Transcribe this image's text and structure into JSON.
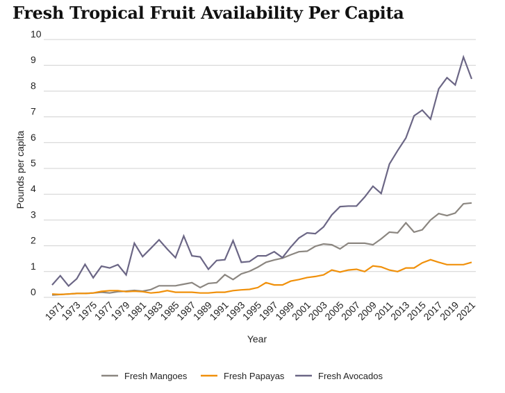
{
  "chart_data": {
    "type": "line",
    "title": "Fresh Tropical Fruit Availability Per Capita",
    "xlabel": "Year",
    "ylabel": "Pounds per capita",
    "ylim": [
      0,
      10
    ],
    "yticks": [
      0,
      1,
      2,
      3,
      4,
      5,
      6,
      7,
      8,
      9,
      10
    ],
    "x_start": 1970,
    "x_end": 2021,
    "xtick_labels": [
      "1971",
      "1973",
      "1975",
      "1977",
      "1979",
      "1981",
      "1983",
      "1985",
      "1987",
      "1989",
      "1991",
      "1993",
      "1995",
      "1997",
      "1999",
      "2001",
      "2003",
      "2005",
      "2007",
      "2009",
      "2011",
      "2013",
      "2015",
      "2017",
      "2019",
      "2021"
    ],
    "grid": true,
    "legend_position": "bottom",
    "series": [
      {
        "name": "Fresh Mangoes",
        "color": "#8b8680",
        "values": [
          0.09,
          0.11,
          0.13,
          0.15,
          0.15,
          0.17,
          0.2,
          0.17,
          0.22,
          0.24,
          0.27,
          0.24,
          0.3,
          0.45,
          0.45,
          0.45,
          0.51,
          0.57,
          0.38,
          0.54,
          0.57,
          0.88,
          0.69,
          0.91,
          1.01,
          1.17,
          1.36,
          1.45,
          1.52,
          1.65,
          1.77,
          1.79,
          1.98,
          2.07,
          2.04,
          1.88,
          2.1,
          2.1,
          2.1,
          2.04,
          2.27,
          2.53,
          2.5,
          2.89,
          2.53,
          2.62,
          3.0,
          3.25,
          3.17,
          3.27,
          3.63,
          3.66
        ]
      },
      {
        "name": "Fresh Papayas",
        "color": "#f0900a",
        "values": [
          0.13,
          0.11,
          0.13,
          0.15,
          0.15,
          0.17,
          0.23,
          0.26,
          0.26,
          0.22,
          0.24,
          0.22,
          0.17,
          0.2,
          0.26,
          0.2,
          0.2,
          0.2,
          0.17,
          0.17,
          0.2,
          0.2,
          0.26,
          0.29,
          0.31,
          0.38,
          0.57,
          0.48,
          0.48,
          0.63,
          0.69,
          0.77,
          0.81,
          0.87,
          1.06,
          0.98,
          1.06,
          1.09,
          1.0,
          1.22,
          1.18,
          1.06,
          1.0,
          1.14,
          1.14,
          1.34,
          1.46,
          1.36,
          1.27,
          1.27,
          1.27,
          1.36
        ]
      },
      {
        "name": "Fresh Avocados",
        "color": "#6b6685",
        "values": [
          0.48,
          0.84,
          0.44,
          0.72,
          1.28,
          0.76,
          1.21,
          1.14,
          1.27,
          0.87,
          2.1,
          1.58,
          1.9,
          2.23,
          1.87,
          1.54,
          2.38,
          1.61,
          1.57,
          1.09,
          1.43,
          1.46,
          2.2,
          1.36,
          1.39,
          1.61,
          1.61,
          1.77,
          1.54,
          1.95,
          2.3,
          2.5,
          2.47,
          2.73,
          3.2,
          3.52,
          3.54,
          3.54,
          3.89,
          4.31,
          4.03,
          5.17,
          5.69,
          6.18,
          7.04,
          7.26,
          6.91,
          8.09,
          8.52,
          8.24,
          9.32,
          8.47
        ]
      }
    ]
  }
}
